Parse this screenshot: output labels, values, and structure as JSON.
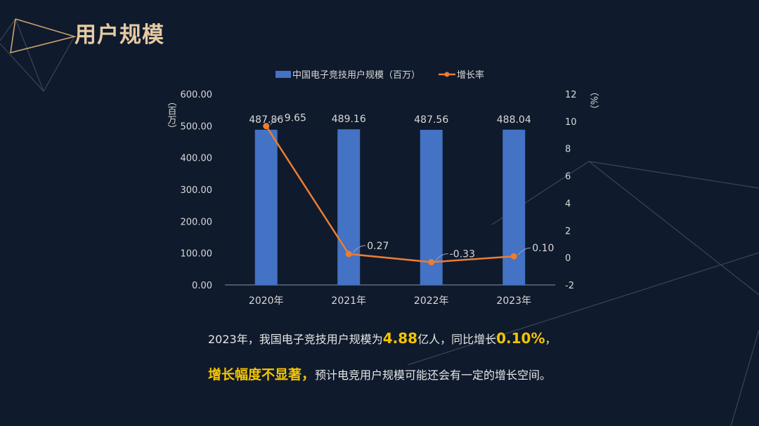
{
  "page": {
    "title": "用户规模"
  },
  "chart_data": {
    "type": "bar+line",
    "categories": [
      "2020年",
      "2021年",
      "2022年",
      "2023年"
    ],
    "series": [
      {
        "name": "中国电子竞技用户规模（百万）",
        "type": "bar",
        "axis": "left",
        "values": [
          487.86,
          489.16,
          487.56,
          488.04
        ],
        "labels": [
          "487.86",
          "489.16",
          "487.56",
          "488.04"
        ]
      },
      {
        "name": "增长率",
        "type": "line",
        "axis": "right",
        "values": [
          9.65,
          0.27,
          -0.33,
          0.1
        ],
        "labels": [
          "9.65",
          "0.27",
          "-0.33",
          "0.10"
        ]
      }
    ],
    "y_left": {
      "label": "（百万）",
      "ylim": [
        0,
        600
      ],
      "ticks": [
        "0.00",
        "100.00",
        "200.00",
        "300.00",
        "400.00",
        "500.00",
        "600.00"
      ]
    },
    "y_right": {
      "label": "（%）",
      "ylim": [
        -2,
        12
      ],
      "ticks": [
        "-2",
        "0",
        "2",
        "4",
        "6",
        "8",
        "10",
        "12"
      ]
    },
    "legend_position": "top",
    "grid": false,
    "colors": {
      "bar": "#4472c4",
      "line": "#ed7d31",
      "text": "#d9d9d9"
    }
  },
  "summary": {
    "line1_a": "2023年，我国电子竞技用户规模为",
    "line1_b": "4.88",
    "line1_c": "亿人，同比增长",
    "line1_d": "0.10%",
    "line1_e": "，",
    "line2_a": "增长幅度不显著，",
    "line2_b": "预计电竞用户规模可能还会有一定的增长空间。"
  }
}
